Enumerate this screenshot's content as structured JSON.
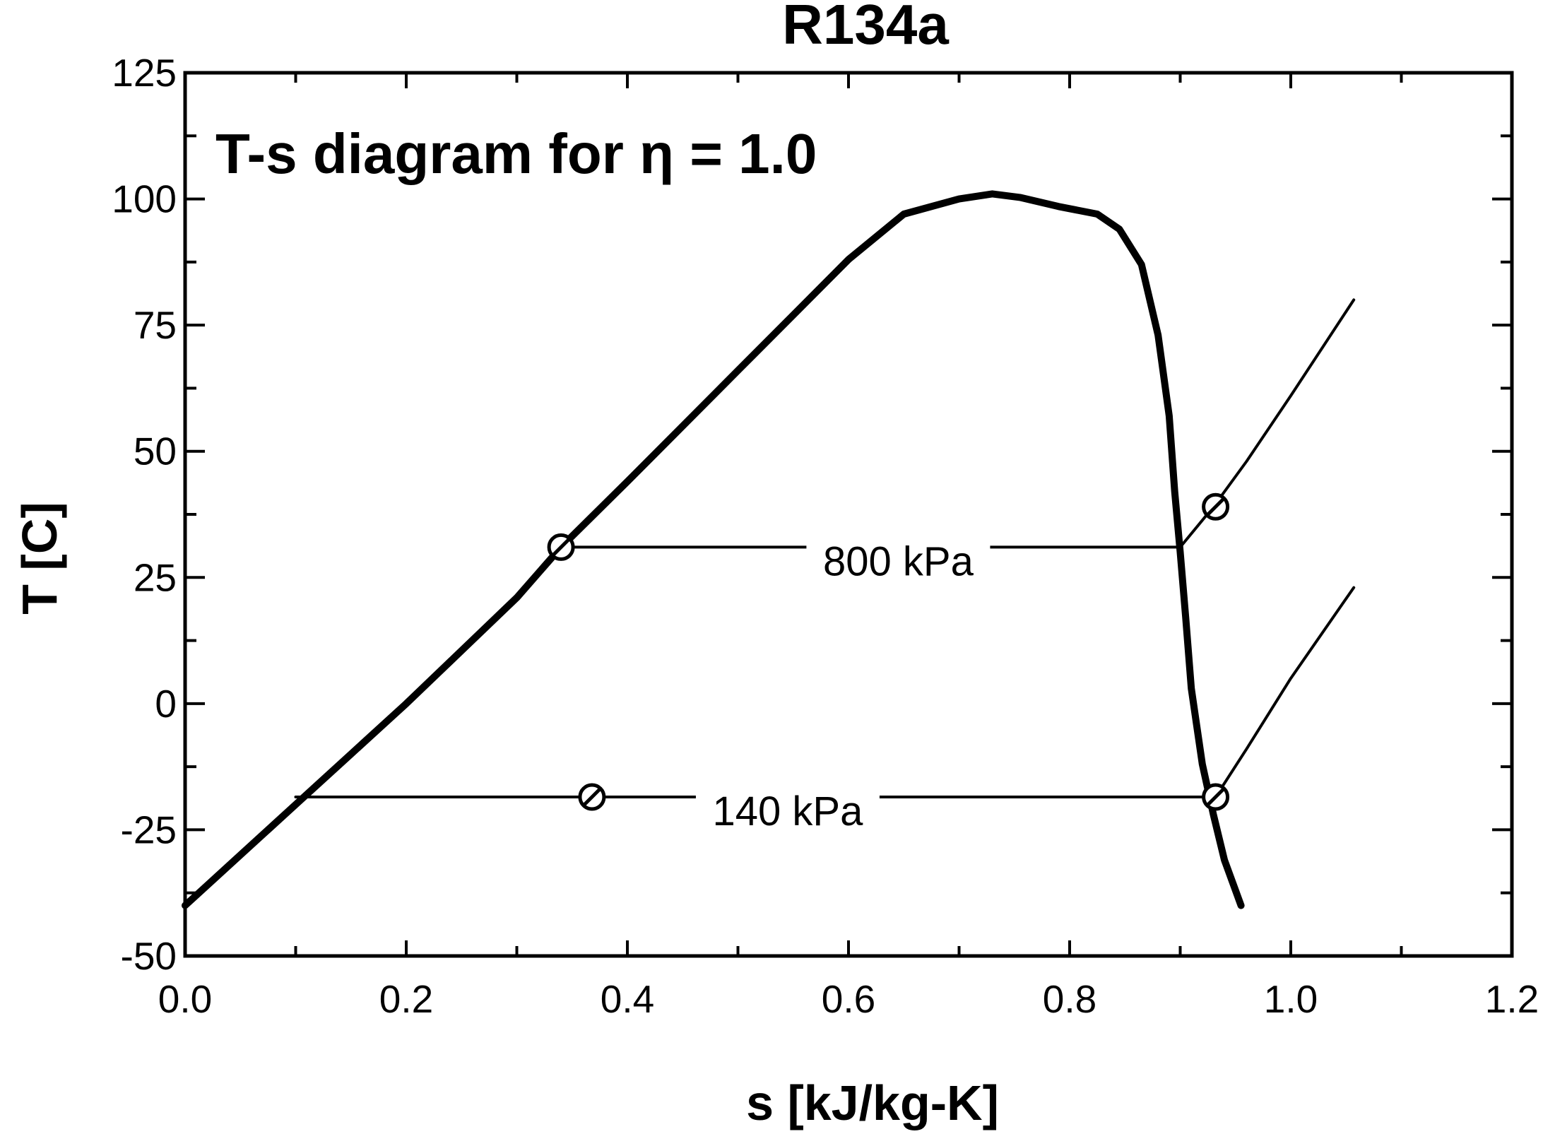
{
  "chart_data": {
    "type": "line",
    "title": "R134a",
    "xlabel": "s [kJ/kg-K]",
    "ylabel": "T [C]",
    "xlim": [
      0.0,
      1.2
    ],
    "ylim": [
      -50,
      125
    ],
    "xticks": [
      "0.0",
      "0.2",
      "0.4",
      "0.6",
      "0.8",
      "1.0",
      "1.2"
    ],
    "yticks": [
      "-50",
      "-25",
      "0",
      "25",
      "50",
      "75",
      "100",
      "125"
    ],
    "grid": false,
    "annotation": "T-s diagram for η = 1.0",
    "series": [
      {
        "style": "thick",
        "x": [
          0.0,
          0.05,
          0.1,
          0.15,
          0.2,
          0.25,
          0.3,
          0.34,
          0.4,
          0.45,
          0.5,
          0.55,
          0.6,
          0.65,
          0.7,
          0.73,
          0.755,
          0.79,
          0.825,
          0.845,
          0.865,
          0.88,
          0.89,
          0.895,
          0.9,
          0.905,
          0.91,
          0.92,
          0.93,
          0.94,
          0.955
        ],
        "y": [
          -40,
          -30,
          -20,
          -10,
          0,
          10.5,
          21,
          31,
          44,
          55,
          66,
          77,
          88,
          97,
          100,
          101,
          100.3,
          98.5,
          97,
          94,
          87,
          73,
          57,
          42,
          30,
          17,
          3,
          -12,
          -22,
          -31,
          -40
        ]
      },
      {
        "style": "thin",
        "x": [
          0.34,
          0.9,
          0.93,
          0.96,
          1.0,
          1.057
        ],
        "y": [
          31,
          31,
          39,
          48,
          61,
          80
        ]
      },
      {
        "style": "thin",
        "x": [
          0.1,
          0.932,
          0.96,
          1.0,
          1.057
        ],
        "y": [
          -18.5,
          -18.5,
          -9,
          5,
          23
        ]
      }
    ],
    "line_labels": [
      {
        "text": "800 kPa",
        "x": 0.645,
        "y": 31
      },
      {
        "text": "140 kPa",
        "x": 0.545,
        "y": -18.5
      }
    ],
    "markers": [
      {
        "x": 0.34,
        "y": 31
      },
      {
        "x": 0.368,
        "y": -18.5
      },
      {
        "x": 0.932,
        "y": 39
      },
      {
        "x": 0.932,
        "y": -18.5
      }
    ]
  }
}
